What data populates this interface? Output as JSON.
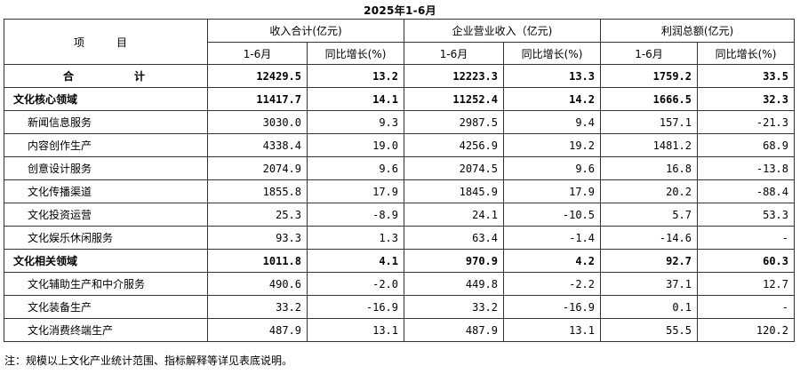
{
  "title": "2025年1-6月",
  "header": {
    "item": "项　目",
    "groups": [
      "收入合计(亿元)",
      "企业营业收入（亿元)",
      "利润总额(亿元)"
    ],
    "sub": [
      "1-6月",
      "同比增长(%)",
      "1-6月",
      "同比增长(%)",
      "1-6月",
      "同比增长(%)"
    ]
  },
  "rows": [
    {
      "name": "合　计",
      "bold": true,
      "kind": "total",
      "values": [
        "12429.5",
        "13.2",
        "12223.3",
        "13.3",
        "1759.2",
        "33.5"
      ]
    },
    {
      "name": "文化核心领域",
      "bold": true,
      "kind": "section",
      "values": [
        "11417.7",
        "14.1",
        "11252.4",
        "14.2",
        "1666.5",
        "32.3"
      ]
    },
    {
      "name": "新闻信息服务",
      "bold": false,
      "kind": "sub",
      "values": [
        "3030.0",
        "9.3",
        "2987.5",
        "9.4",
        "157.1",
        "-21.3"
      ]
    },
    {
      "name": "内容创作生产",
      "bold": false,
      "kind": "sub",
      "values": [
        "4338.4",
        "19.0",
        "4256.9",
        "19.2",
        "1481.2",
        "68.9"
      ]
    },
    {
      "name": "创意设计服务",
      "bold": false,
      "kind": "sub",
      "values": [
        "2074.9",
        "9.6",
        "2074.5",
        "9.6",
        "16.8",
        "-13.8"
      ]
    },
    {
      "name": "文化传播渠道",
      "bold": false,
      "kind": "sub",
      "values": [
        "1855.8",
        "17.9",
        "1845.9",
        "17.9",
        "20.2",
        "-88.4"
      ]
    },
    {
      "name": "文化投资运营",
      "bold": false,
      "kind": "sub",
      "values": [
        "25.3",
        "-8.9",
        "24.1",
        "-10.5",
        "5.7",
        "53.3"
      ]
    },
    {
      "name": "文化娱乐休闲服务",
      "bold": false,
      "kind": "sub",
      "values": [
        "93.3",
        "1.3",
        "63.4",
        "-1.4",
        "-14.6",
        "-"
      ]
    },
    {
      "name": "文化相关领域",
      "bold": true,
      "kind": "section",
      "values": [
        "1011.8",
        "4.1",
        "970.9",
        "4.2",
        "92.7",
        "60.3"
      ]
    },
    {
      "name": "文化辅助生产和中介服务",
      "bold": false,
      "kind": "sub",
      "values": [
        "490.6",
        "-2.0",
        "449.8",
        "-2.2",
        "37.1",
        "12.7"
      ]
    },
    {
      "name": "文化装备生产",
      "bold": false,
      "kind": "sub",
      "values": [
        "33.2",
        "-16.9",
        "33.2",
        "-16.9",
        "0.1",
        "-"
      ]
    },
    {
      "name": "文化消费终端生产",
      "bold": false,
      "kind": "sub",
      "values": [
        "487.9",
        "13.1",
        "487.9",
        "13.1",
        "55.5",
        "120.2"
      ]
    }
  ],
  "note": "注：规模以上文化产业统计范围、指标解释等详见表底说明。"
}
